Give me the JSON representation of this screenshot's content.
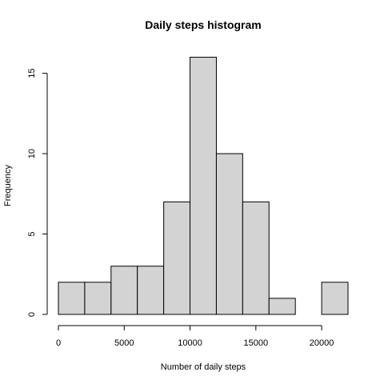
{
  "chart_data": {
    "type": "bar",
    "title": "Daily steps histogram",
    "xlabel": "Number of daily steps",
    "ylabel": "Frequency",
    "bins": [
      {
        "x0": 0,
        "x1": 2000,
        "count": 2
      },
      {
        "x0": 2000,
        "x1": 4000,
        "count": 2
      },
      {
        "x0": 4000,
        "x1": 6000,
        "count": 3
      },
      {
        "x0": 6000,
        "x1": 8000,
        "count": 3
      },
      {
        "x0": 8000,
        "x1": 10000,
        "count": 7
      },
      {
        "x0": 10000,
        "x1": 12000,
        "count": 16
      },
      {
        "x0": 12000,
        "x1": 14000,
        "count": 10
      },
      {
        "x0": 14000,
        "x1": 16000,
        "count": 7
      },
      {
        "x0": 16000,
        "x1": 18000,
        "count": 1
      },
      {
        "x0": 18000,
        "x1": 20000,
        "count": 0
      },
      {
        "x0": 20000,
        "x1": 22000,
        "count": 2
      }
    ],
    "xlim": [
      0,
      22000
    ],
    "ylim": [
      0,
      16
    ],
    "xticks": [
      0,
      5000,
      10000,
      15000,
      20000
    ],
    "yticks": [
      0,
      5,
      10,
      15
    ],
    "bar_color": "#d3d3d3",
    "grid": false
  }
}
